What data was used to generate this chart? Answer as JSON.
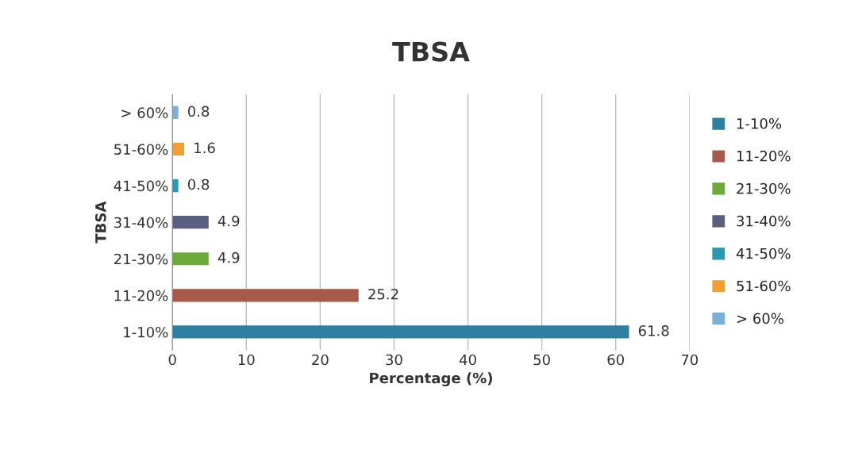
{
  "chart_data": {
    "type": "bar",
    "orientation": "horizontal",
    "title": "TBSA",
    "xlabel": "Percentage (%)",
    "ylabel": "TBSA",
    "categories": [
      "> 60%",
      "51-60%",
      "41-50%",
      "31-40%",
      "21-30%",
      "11-20%",
      "1-10%"
    ],
    "series": [
      {
        "name": "1-10%",
        "color": "#2e7fa0",
        "values": [
          null,
          null,
          null,
          null,
          null,
          null,
          61.8
        ]
      },
      {
        "name": "11-20%",
        "color": "#a85a4a",
        "values": [
          null,
          null,
          null,
          null,
          null,
          25.2,
          null
        ]
      },
      {
        "name": "21-30%",
        "color": "#6aaa3a",
        "values": [
          null,
          null,
          null,
          null,
          4.9,
          null,
          null
        ]
      },
      {
        "name": "31-40%",
        "color": "#5a5e80",
        "values": [
          null,
          null,
          null,
          4.9,
          null,
          null,
          null
        ]
      },
      {
        "name": "41-50%",
        "color": "#2a98b0",
        "values": [
          null,
          null,
          0.8,
          null,
          null,
          null,
          null
        ]
      },
      {
        "name": "51-60%",
        "color": "#f0a030",
        "values": [
          null,
          1.6,
          null,
          null,
          null,
          null,
          null
        ]
      },
      {
        "name": "> 60%",
        "color": "#7ab0d8",
        "values": [
          0.8,
          null,
          null,
          null,
          null,
          null,
          null
        ]
      }
    ],
    "xlim": [
      0,
      70
    ],
    "xticks": [
      0,
      10,
      20,
      30,
      40,
      50,
      60,
      70
    ],
    "grid": "x",
    "legend": "right",
    "data_labels": true
  }
}
